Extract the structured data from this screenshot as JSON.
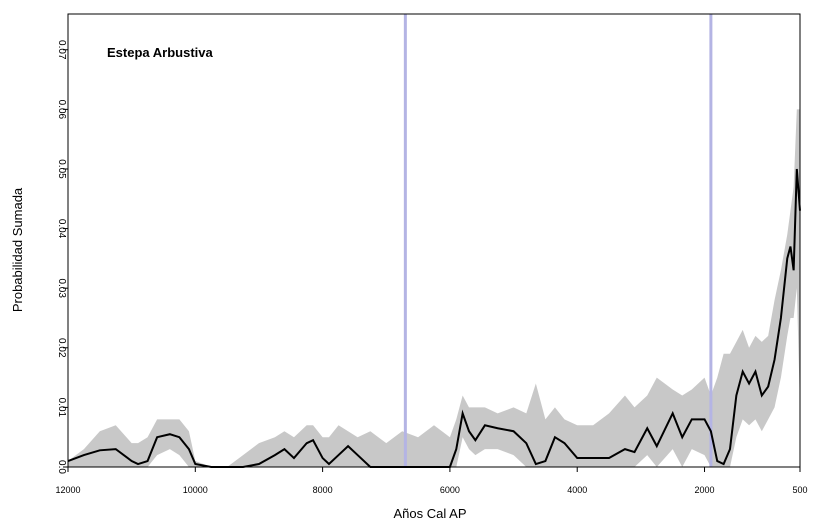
{
  "chart_data": {
    "type": "band-line",
    "annotation": "Estepa Arbustiva",
    "xlabel": "Años Cal AP",
    "ylabel": "Probabilidad Sumada",
    "x": [
      12000,
      11750,
      11500,
      11250,
      11000,
      10900,
      10750,
      10600,
      10400,
      10250,
      10100,
      10000,
      9750,
      9500,
      9250,
      9000,
      8750,
      8600,
      8450,
      8250,
      8150,
      8000,
      7900,
      7750,
      7600,
      7450,
      7250,
      7000,
      6750,
      6500,
      6250,
      6000,
      5900,
      5800,
      5700,
      5600,
      5450,
      5250,
      5000,
      4800,
      4650,
      4500,
      4350,
      4200,
      4000,
      3750,
      3500,
      3250,
      3100,
      2900,
      2750,
      2500,
      2350,
      2200,
      2000,
      1900,
      1800,
      1700,
      1600,
      1500,
      1400,
      1300,
      1200,
      1100,
      1000,
      900,
      800,
      700,
      650,
      600,
      550,
      500
    ],
    "values": [
      0.001,
      0.002,
      0.0028,
      0.003,
      0.001,
      0.0005,
      0.001,
      0.005,
      0.0055,
      0.005,
      0.003,
      0.0005,
      0,
      0,
      0,
      0.0005,
      0.002,
      0.003,
      0.0015,
      0.004,
      0.0045,
      0.0015,
      0.0005,
      0.002,
      0.0035,
      0.002,
      0,
      0,
      0,
      0,
      0,
      0,
      0.003,
      0.009,
      0.006,
      0.0045,
      0.007,
      0.0065,
      0.006,
      0.004,
      0.0005,
      0.001,
      0.005,
      0.004,
      0.0015,
      0.0015,
      0.0015,
      0.003,
      0.0025,
      0.0065,
      0.0035,
      0.009,
      0.005,
      0.008,
      0.008,
      0.006,
      0.001,
      0.0005,
      0.003,
      0.012,
      0.016,
      0.014,
      0.016,
      0.012,
      0.0135,
      0.018,
      0.025,
      0.035,
      0.037,
      0.033,
      0.05,
      0.043
    ],
    "upper": [
      0.001,
      0.003,
      0.006,
      0.007,
      0.004,
      0.004,
      0.005,
      0.008,
      0.008,
      0.008,
      0.006,
      0.001,
      0,
      0,
      0.002,
      0.004,
      0.005,
      0.006,
      0.005,
      0.007,
      0.007,
      0.005,
      0.005,
      0.007,
      0.006,
      0.005,
      0.006,
      0.004,
      0.006,
      0.005,
      0.007,
      0.005,
      0.008,
      0.012,
      0.01,
      0.01,
      0.01,
      0.009,
      0.01,
      0.009,
      0.014,
      0.008,
      0.01,
      0.008,
      0.007,
      0.007,
      0.009,
      0.012,
      0.01,
      0.012,
      0.015,
      0.013,
      0.012,
      0.013,
      0.015,
      0.012,
      0.015,
      0.019,
      0.019,
      0.021,
      0.023,
      0.02,
      0.022,
      0.021,
      0.022,
      0.028,
      0.033,
      0.039,
      0.043,
      0.047,
      0.06,
      0.06
    ],
    "lower": [
      0,
      0,
      0,
      0,
      0,
      0,
      0,
      0.002,
      0.003,
      0.002,
      0,
      0,
      0,
      0,
      0,
      0,
      0,
      0,
      0,
      0,
      0,
      0,
      0,
      0,
      0,
      0,
      0,
      0,
      0,
      0,
      0,
      0,
      0,
      0.005,
      0.003,
      0.002,
      0.003,
      0.003,
      0.002,
      0,
      0,
      0,
      0,
      0,
      0,
      0,
      0,
      0,
      0,
      0.002,
      0,
      0.003,
      0,
      0.003,
      0.002,
      0,
      0,
      0,
      0,
      0.005,
      0.008,
      0.007,
      0.008,
      0.006,
      0.008,
      0.01,
      0.015,
      0.022,
      0.025,
      0.025,
      0.03,
      0.01
    ],
    "line_color": "#000000",
    "band_color": "#c8c8c8",
    "vlines": [
      6700,
      1900
    ],
    "vline_color": "#b4b4e4",
    "xlim": [
      12000,
      500
    ],
    "xticks": [
      12000,
      10000,
      8000,
      6000,
      4000,
      2000,
      500
    ],
    "ylim": [
      0,
      0.076
    ],
    "yticks": [
      {
        "value": 0,
        "label": "0.0"
      },
      0.01,
      0.02,
      0.03,
      0.04,
      0.05,
      0.06,
      0.07
    ]
  }
}
